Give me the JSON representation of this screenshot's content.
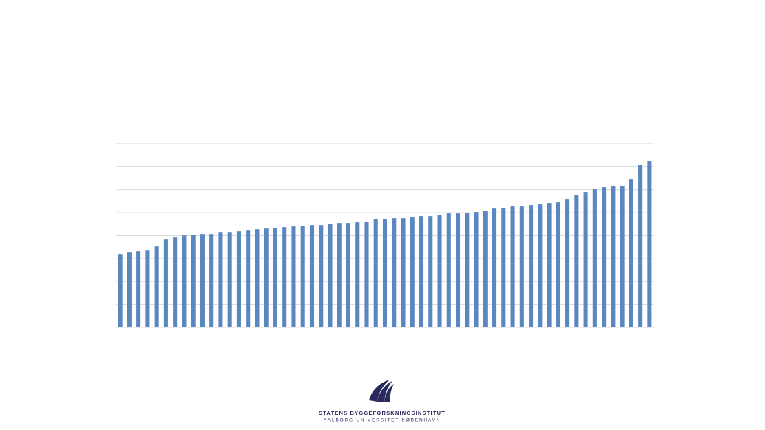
{
  "chart_data": {
    "type": "bar",
    "categories": [
      null,
      null,
      null,
      null,
      null,
      null,
      null,
      null,
      null,
      null,
      null,
      null,
      null,
      null,
      null,
      null,
      null,
      null,
      null,
      null,
      null,
      null,
      null,
      null,
      null,
      null,
      null,
      null,
      null,
      null,
      null,
      null,
      null,
      null,
      null,
      null,
      null,
      null,
      null,
      null,
      null,
      null,
      null,
      null,
      null,
      null,
      null,
      null,
      null,
      null,
      null,
      null,
      null,
      null,
      null,
      null,
      null,
      null,
      null
    ],
    "values": [
      3.2,
      3.26,
      3.32,
      3.35,
      3.53,
      3.83,
      3.92,
      4.01,
      4.04,
      4.07,
      4.07,
      4.16,
      4.16,
      4.19,
      4.22,
      4.28,
      4.31,
      4.34,
      4.37,
      4.4,
      4.43,
      4.46,
      4.46,
      4.52,
      4.55,
      4.55,
      4.58,
      4.61,
      4.73,
      4.73,
      4.76,
      4.76,
      4.79,
      4.85,
      4.85,
      4.91,
      4.97,
      4.97,
      5.0,
      5.03,
      5.09,
      5.18,
      5.21,
      5.27,
      5.27,
      5.33,
      5.36,
      5.42,
      5.45,
      5.6,
      5.78,
      5.9,
      6.02,
      6.11,
      6.14,
      6.17,
      6.47,
      7.07,
      7.25
    ],
    "color": "#5b87c0",
    "ylim": [
      0,
      8
    ],
    "yticks": [
      0,
      1,
      2,
      3,
      4,
      5,
      6,
      7,
      8
    ],
    "grid": true,
    "tick_labels": false
  },
  "logo": {
    "name": "STATENS BYGGEFORSKNINGSINSTITUT",
    "subtitle": "AALBORG UNIVERSITET KØBENHAVN"
  }
}
